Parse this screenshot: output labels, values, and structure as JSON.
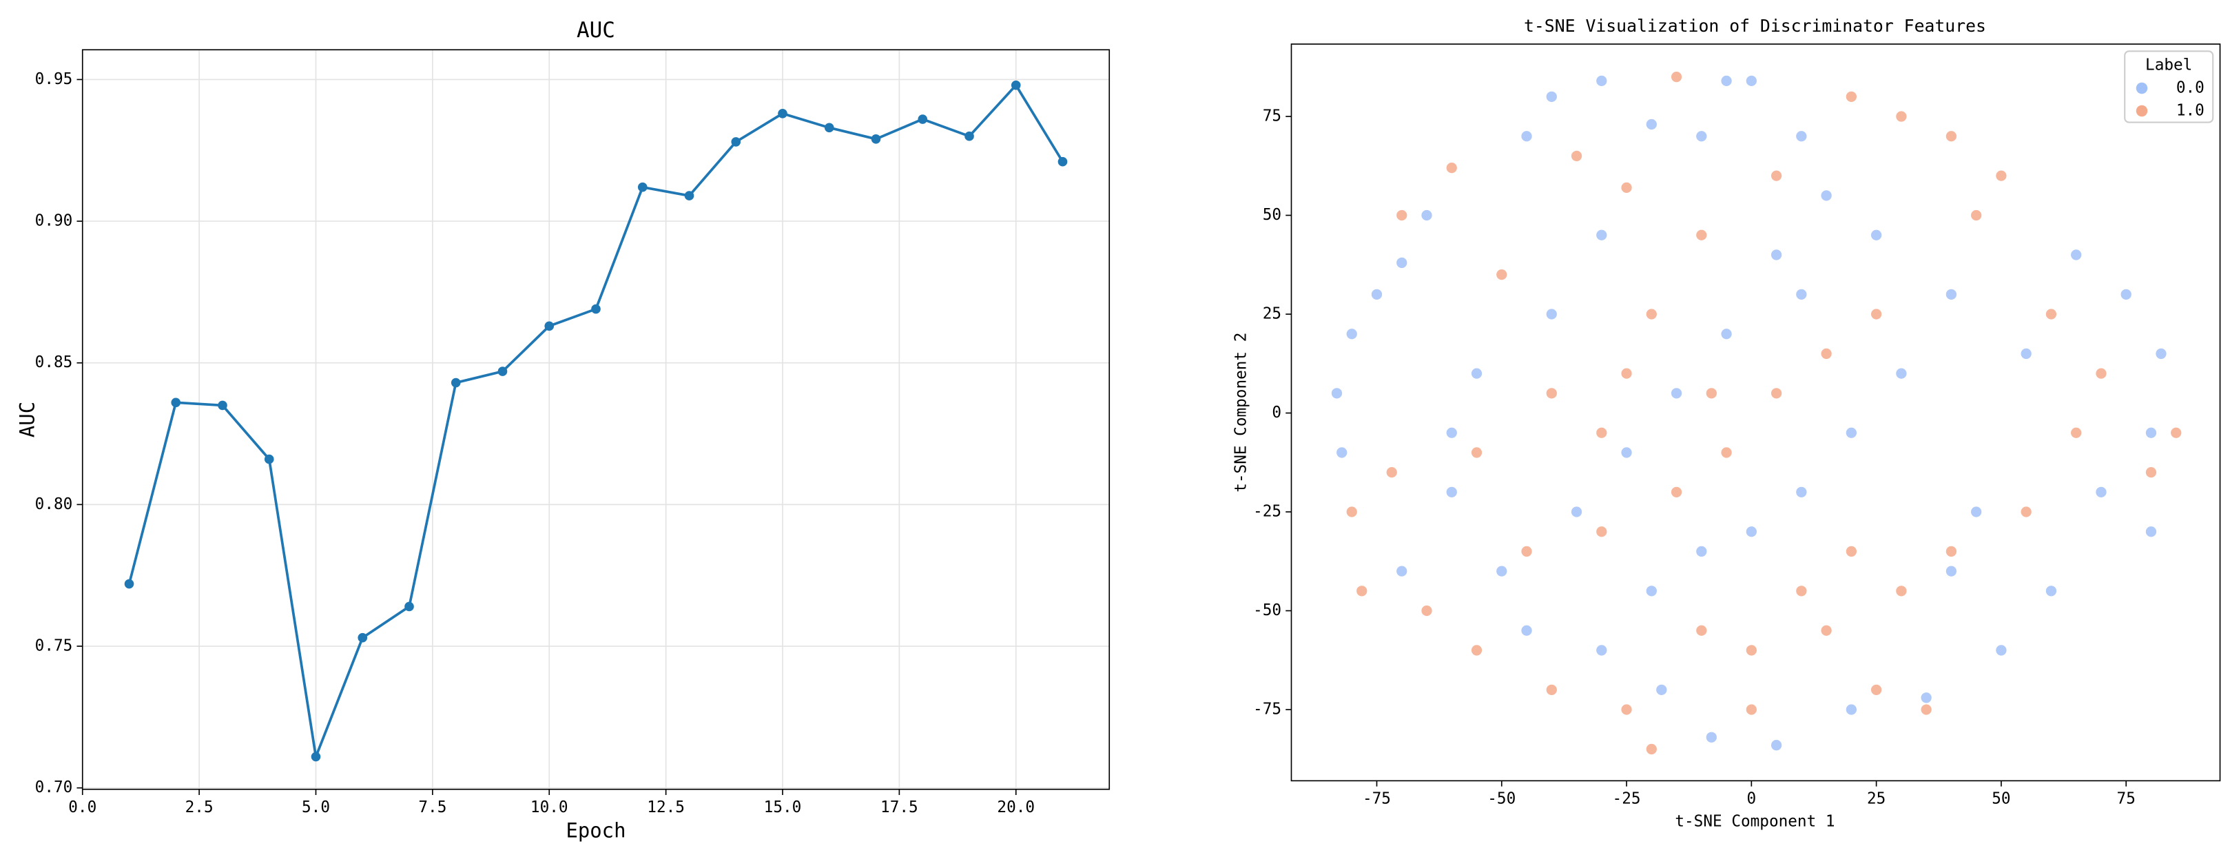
{
  "chart_data": [
    {
      "type": "line",
      "title": "AUC",
      "x_label": "Epoch",
      "y_label": "AUC",
      "x": [
        1,
        2,
        3,
        4,
        5,
        6,
        7,
        8,
        9,
        10,
        11,
        12,
        13,
        14,
        15,
        16,
        17,
        18,
        19,
        20,
        21
      ],
      "series": [
        {
          "name": "AUC",
          "color": "#1f77b4",
          "values": [
            0.772,
            0.836,
            0.835,
            0.816,
            0.711,
            0.753,
            0.764,
            0.843,
            0.847,
            0.863,
            0.869,
            0.912,
            0.909,
            0.928,
            0.938,
            0.933,
            0.929,
            0.936,
            0.93,
            0.948,
            0.921
          ]
        }
      ],
      "xlim": [
        0,
        22
      ],
      "ylim": [
        0.6995,
        0.9605
      ],
      "xticks": [
        {
          "value": 0,
          "label": "0.0"
        },
        2.5,
        {
          "value": 5,
          "label": "5.0"
        },
        7.5,
        {
          "value": 10,
          "label": "10.0"
        },
        12.5,
        {
          "value": 15,
          "label": "15.0"
        },
        17.5,
        {
          "value": 20,
          "label": "20.0"
        }
      ],
      "yticks": [
        {
          "value": 0.7,
          "label": "0.70"
        },
        0.75,
        {
          "value": 0.8,
          "label": "0.80"
        },
        0.85,
        {
          "value": 0.9,
          "label": "0.90"
        },
        0.95
      ],
      "grid": true
    },
    {
      "type": "scatter",
      "title": "t-SNE Visualization of Discriminator Features",
      "x_label": "t-SNE Component 1",
      "y_label": "t-SNE Component 2",
      "legend_title": "Label",
      "legend": "upper right",
      "series": [
        {
          "name": "0.0",
          "color": "#a1c0f7",
          "x": [
            -83,
            -82,
            -80,
            -75,
            -70,
            -60,
            -55,
            -50,
            -45,
            -40,
            -30,
            -20,
            -10,
            -5,
            0,
            10,
            15,
            5,
            -5,
            -15,
            -25,
            -35,
            -45,
            -30,
            -20,
            -10,
            0,
            10,
            20,
            30,
            40,
            50,
            35,
            20,
            5,
            -8,
            -18,
            65,
            75,
            82,
            80,
            70,
            80,
            60,
            45,
            55,
            40,
            25,
            10,
            -30,
            -40,
            -65,
            -60,
            -70
          ],
          "values": [
            5,
            -10,
            20,
            30,
            38,
            -20,
            10,
            -40,
            70,
            80,
            84,
            73,
            70,
            84,
            84,
            70,
            55,
            40,
            20,
            5,
            -10,
            -25,
            -55,
            -60,
            -45,
            -35,
            -30,
            -20,
            -5,
            10,
            -40,
            -60,
            -72,
            -75,
            -84,
            -82,
            -70,
            40,
            30,
            15,
            -5,
            -20,
            -30,
            -45,
            -25,
            15,
            30,
            45,
            30,
            45,
            25,
            50,
            -5,
            -40
          ]
        },
        {
          "name": "1.0",
          "color": "#f4a98a",
          "x": [
            -80,
            -78,
            -72,
            -65,
            -70,
            -60,
            -50,
            -40,
            -35,
            -25,
            -15,
            -10,
            -20,
            -5,
            5,
            15,
            25,
            20,
            30,
            40,
            50,
            45,
            60,
            70,
            85,
            80,
            65,
            55,
            40,
            30,
            20,
            10,
            0,
            -10,
            -20,
            -25,
            -40,
            -55,
            -45,
            -30,
            -15,
            0,
            15,
            25,
            35,
            -55,
            -30,
            -25,
            5,
            -8
          ],
          "values": [
            -25,
            -45,
            -15,
            -50,
            50,
            62,
            35,
            5,
            65,
            57,
            85,
            45,
            25,
            -10,
            5,
            15,
            25,
            80,
            75,
            70,
            60,
            50,
            25,
            10,
            -5,
            -15,
            -5,
            -25,
            -35,
            -45,
            -35,
            -45,
            -60,
            -55,
            -85,
            -75,
            -70,
            -60,
            -35,
            -30,
            -20,
            -75,
            -55,
            -70,
            -75,
            -10,
            -5,
            10,
            60,
            5
          ]
        }
      ],
      "xlim": [
        -92.1,
        93.8
      ],
      "ylim": [
        -93,
        93.3
      ],
      "xticks": [
        -75,
        -50,
        -25,
        0,
        25,
        50,
        75
      ],
      "yticks": [
        -75,
        -50,
        -25,
        0,
        25,
        50,
        75
      ],
      "grid": false
    }
  ]
}
